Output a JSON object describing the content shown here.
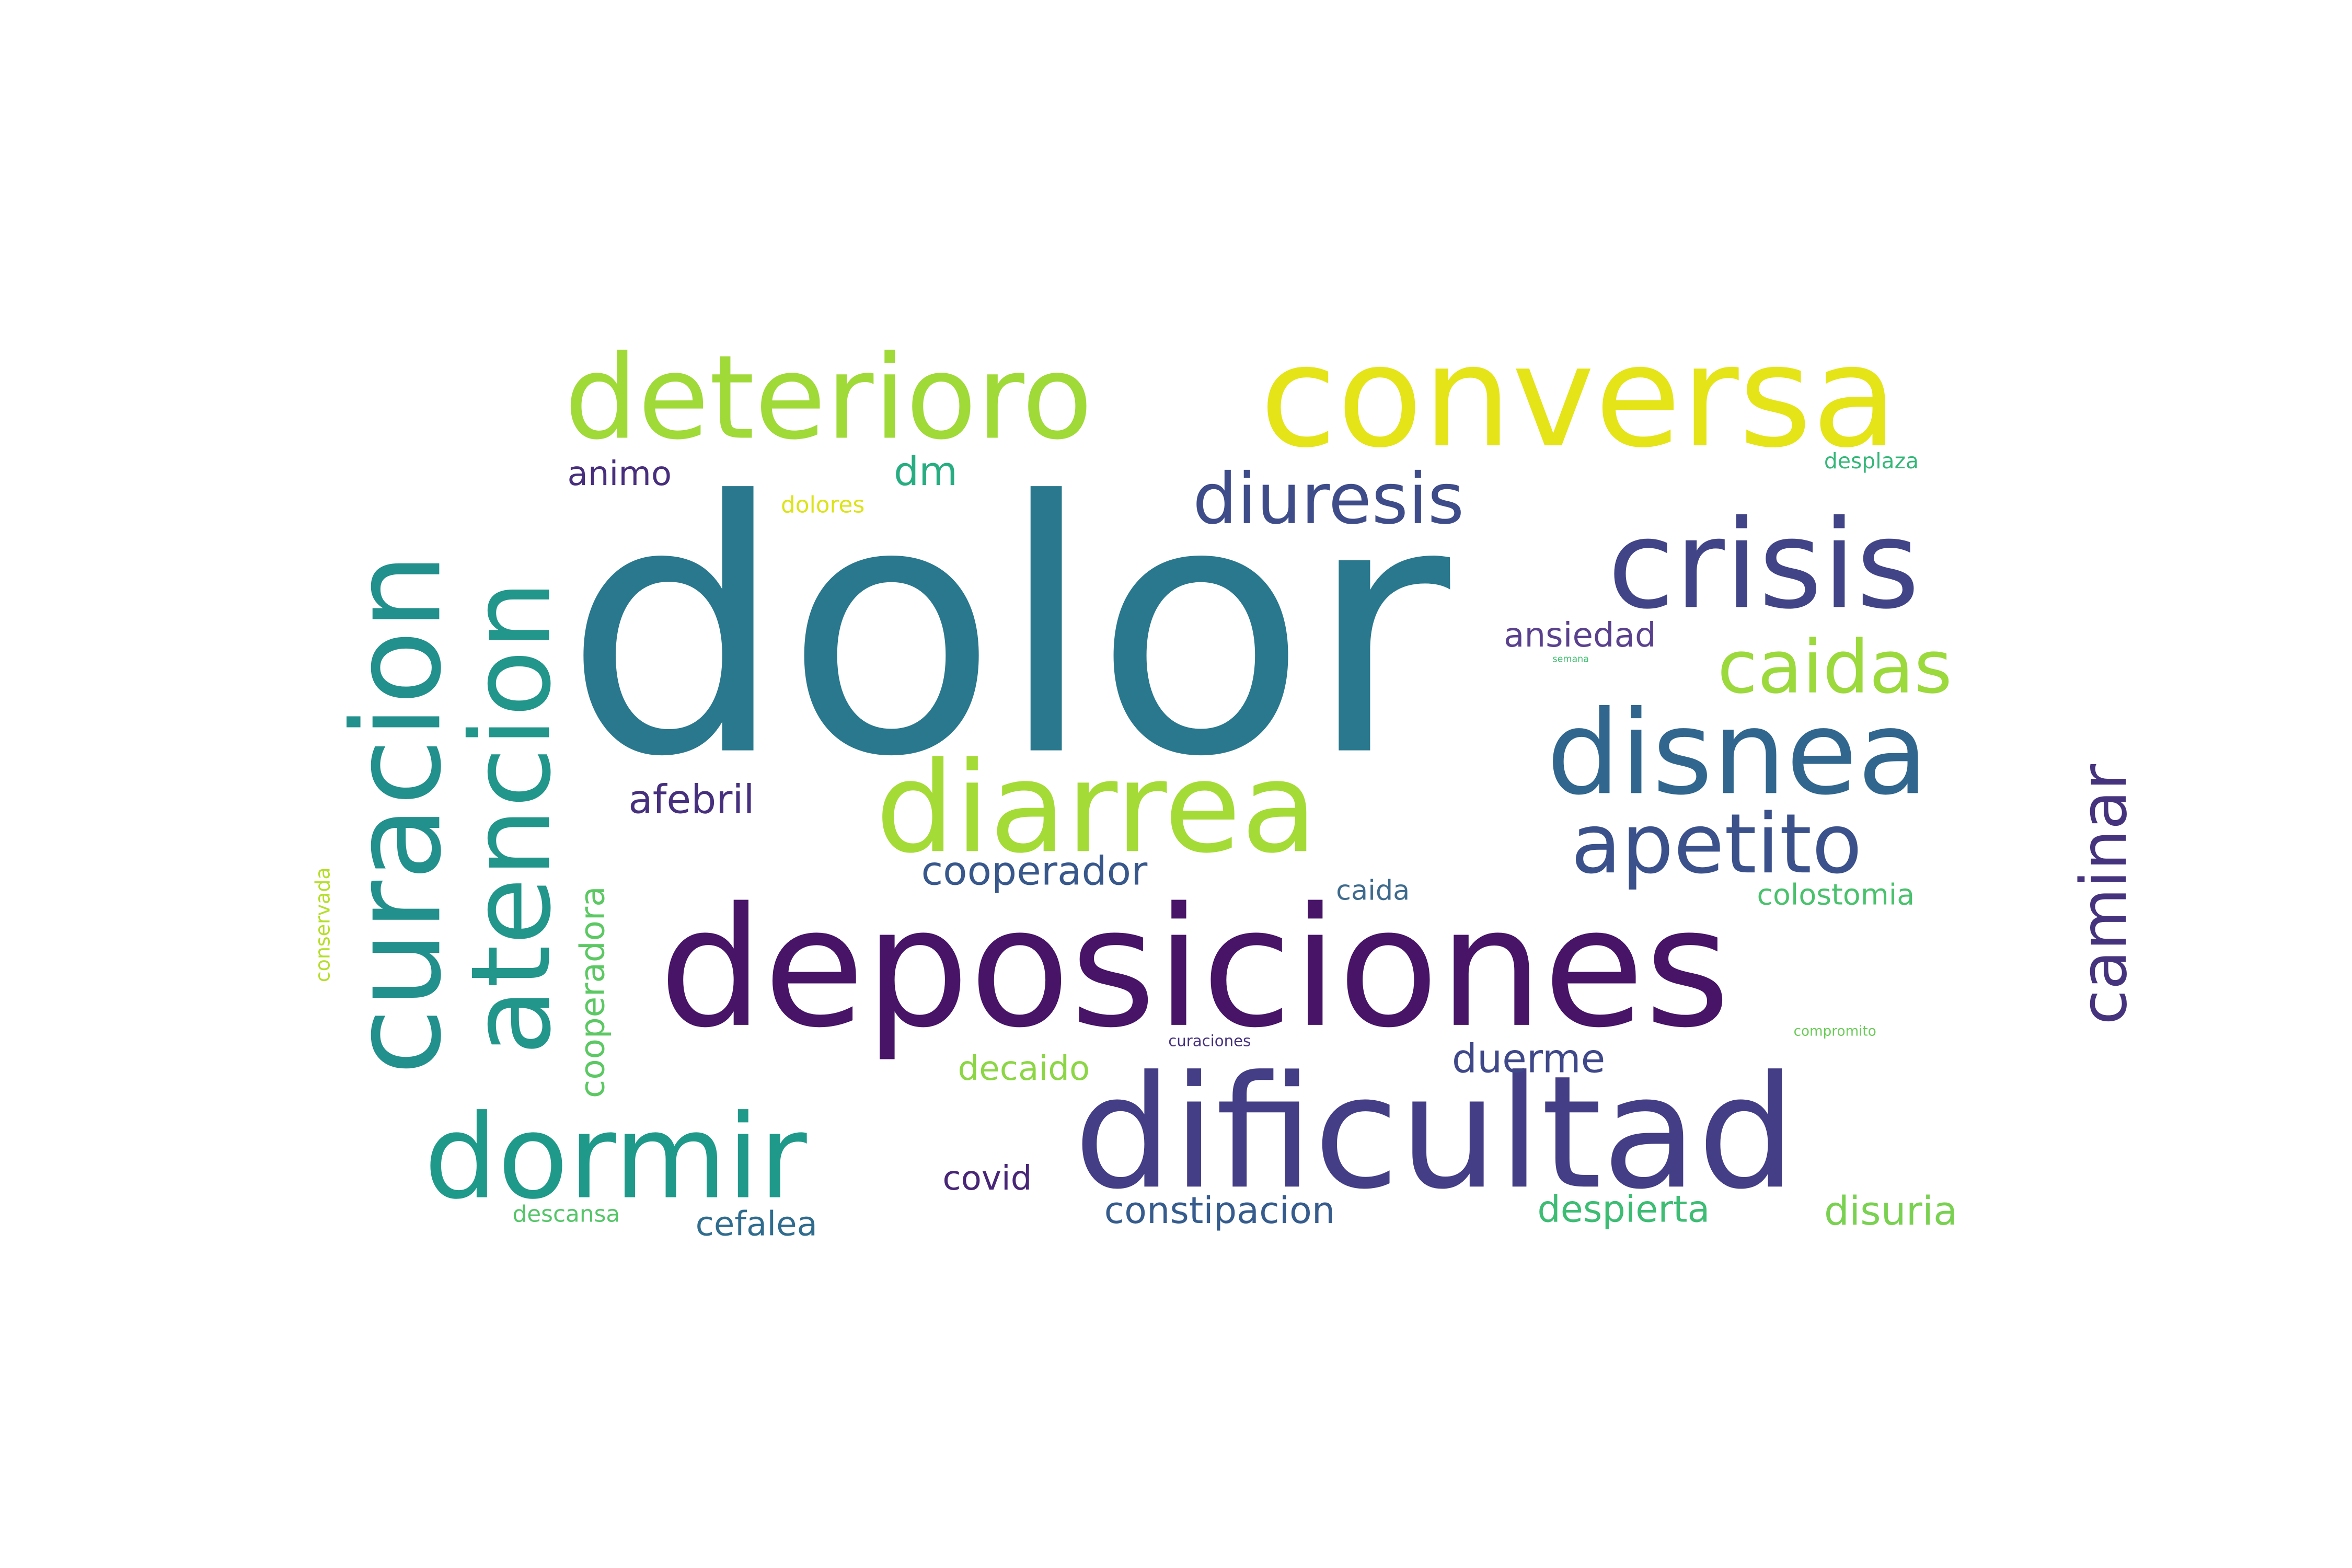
{
  "words": [
    {
      "text": "dolor",
      "color": "#2a788e"
    },
    {
      "text": "deposiciones",
      "color": "#471467"
    },
    {
      "text": "conversa",
      "color": "#e4e419"
    },
    {
      "text": "dificultad",
      "color": "#433e85"
    },
    {
      "text": "curacion",
      "color": "#22908c"
    },
    {
      "text": "atencion",
      "color": "#22968b"
    },
    {
      "text": "deterioro",
      "color": "#a0da39"
    },
    {
      "text": "crisis",
      "color": "#414487"
    },
    {
      "text": "diarrea",
      "color": "#a5db36"
    },
    {
      "text": "disnea",
      "color": "#31678e"
    },
    {
      "text": "dormir",
      "color": "#1f9a8a"
    },
    {
      "text": "apetito",
      "color": "#3b518b"
    },
    {
      "text": "caidas",
      "color": "#9bd93c"
    },
    {
      "text": "diuresis",
      "color": "#3e4c8a"
    },
    {
      "text": "caminar",
      "color": "#46337e"
    },
    {
      "text": "cooperador",
      "color": "#38588c"
    },
    {
      "text": "cooperadora",
      "color": "#5cc863"
    },
    {
      "text": "afebril",
      "color": "#46307e"
    },
    {
      "text": "dm",
      "color": "#27ad81"
    },
    {
      "text": "animo",
      "color": "#472f7d"
    },
    {
      "text": "dolores",
      "color": "#dce319"
    },
    {
      "text": "ansiedad",
      "color": "#5a418d"
    },
    {
      "text": "semana",
      "color": "#42be71"
    },
    {
      "text": "desplaza",
      "color": "#35b779"
    },
    {
      "text": "caida",
      "color": "#3e6b8d"
    },
    {
      "text": "colostomia",
      "color": "#4ac16d"
    },
    {
      "text": "compromito",
      "color": "#6ccd5a"
    },
    {
      "text": "curaciones",
      "color": "#46327e"
    },
    {
      "text": "decaido",
      "color": "#8cd645"
    },
    {
      "text": "duerme",
      "color": "#3f4889"
    },
    {
      "text": "covid",
      "color": "#482677"
    },
    {
      "text": "constipacion",
      "color": "#365c8d"
    },
    {
      "text": "despierta",
      "color": "#3dbc74"
    },
    {
      "text": "disuria",
      "color": "#7ad151"
    },
    {
      "text": "descansa",
      "color": "#54c568"
    },
    {
      "text": "cefalea",
      "color": "#2f6c8e"
    },
    {
      "text": "conservada",
      "color": "#b5de2b"
    }
  ]
}
